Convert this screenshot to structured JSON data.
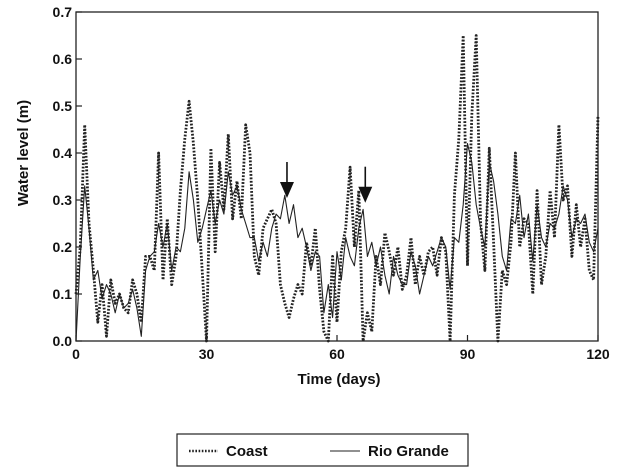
{
  "chart_data": {
    "type": "line",
    "title": "",
    "xlabel": "Time (days)",
    "ylabel": "Water level (m)",
    "xlim": [
      0,
      120
    ],
    "ylim": [
      0,
      0.7
    ],
    "x_ticks": [
      0,
      30,
      60,
      90,
      120
    ],
    "y_ticks": [
      0.0,
      0.1,
      0.2,
      0.3,
      0.4,
      0.5,
      0.6,
      0.7
    ],
    "y_tick_labels": [
      "0.0",
      "0.1",
      "0.2",
      "0.3",
      "0.4",
      "0.5",
      "0.6",
      "0.7"
    ],
    "grid": false,
    "legend_position": "bottom-center",
    "annotations": [
      {
        "type": "arrow",
        "x": 48.5,
        "y": 0.3,
        "direction": "down"
      },
      {
        "type": "arrow",
        "x": 66.5,
        "y": 0.29,
        "direction": "down"
      }
    ],
    "series": [
      {
        "name": "Coast",
        "style": "dotted",
        "color": "#222222",
        "x": [
          0,
          1,
          2,
          3,
          4,
          5,
          6,
          7,
          8,
          9,
          10,
          11,
          12,
          13,
          14,
          15,
          16,
          17,
          18,
          19,
          20,
          21,
          22,
          23,
          24,
          25,
          26,
          27,
          28,
          29,
          30,
          31,
          32,
          33,
          34,
          35,
          36,
          37,
          38,
          39,
          40,
          41,
          42,
          43,
          44,
          45,
          46,
          47,
          48,
          49,
          50,
          51,
          52,
          53,
          54,
          55,
          56,
          57,
          58,
          59,
          60,
          61,
          62,
          63,
          64,
          65,
          66,
          67,
          68,
          69,
          70,
          71,
          72,
          73,
          74,
          75,
          76,
          77,
          78,
          79,
          80,
          81,
          82,
          83,
          84,
          85,
          86,
          87,
          88,
          89,
          90,
          91,
          92,
          93,
          94,
          95,
          96,
          97,
          98,
          99,
          100,
          101,
          102,
          103,
          104,
          105,
          106,
          107,
          108,
          109,
          110,
          111,
          112,
          113,
          114,
          115,
          116,
          117,
          118,
          119,
          120
        ],
        "values": [
          0.1,
          0.2,
          0.46,
          0.25,
          0.15,
          0.04,
          0.12,
          0.01,
          0.13,
          0.08,
          0.1,
          0.07,
          0.06,
          0.13,
          0.1,
          0.04,
          0.18,
          0.18,
          0.15,
          0.4,
          0.13,
          0.26,
          0.12,
          0.18,
          0.32,
          0.43,
          0.51,
          0.42,
          0.3,
          0.15,
          0.0,
          0.41,
          0.19,
          0.38,
          0.28,
          0.44,
          0.26,
          0.34,
          0.26,
          0.46,
          0.4,
          0.18,
          0.14,
          0.24,
          0.26,
          0.28,
          0.25,
          0.12,
          0.08,
          0.05,
          0.09,
          0.12,
          0.1,
          0.21,
          0.16,
          0.24,
          0.11,
          0.02,
          0.0,
          0.18,
          0.04,
          0.19,
          0.24,
          0.37,
          0.2,
          0.32,
          0.0,
          0.06,
          0.02,
          0.18,
          0.12,
          0.23,
          0.19,
          0.14,
          0.2,
          0.11,
          0.14,
          0.22,
          0.12,
          0.18,
          0.14,
          0.19,
          0.2,
          0.14,
          0.22,
          0.19,
          0.0,
          0.31,
          0.43,
          0.65,
          0.16,
          0.48,
          0.65,
          0.25,
          0.15,
          0.41,
          0.21,
          0.0,
          0.15,
          0.12,
          0.21,
          0.4,
          0.2,
          0.26,
          0.25,
          0.1,
          0.32,
          0.12,
          0.18,
          0.32,
          0.22,
          0.46,
          0.3,
          0.33,
          0.18,
          0.29,
          0.2,
          0.26,
          0.15,
          0.13,
          0.48
        ]
      },
      {
        "name": "Rio Grande",
        "style": "solid",
        "color": "#222222",
        "x": [
          0,
          1,
          2,
          3,
          4,
          5,
          6,
          7,
          8,
          9,
          10,
          11,
          12,
          13,
          14,
          15,
          16,
          17,
          18,
          19,
          20,
          21,
          22,
          23,
          24,
          25,
          26,
          27,
          28,
          29,
          30,
          31,
          32,
          33,
          34,
          35,
          36,
          37,
          38,
          39,
          40,
          41,
          42,
          43,
          44,
          45,
          46,
          47,
          48,
          49,
          50,
          51,
          52,
          53,
          54,
          55,
          56,
          57,
          58,
          59,
          60,
          61,
          62,
          63,
          64,
          65,
          66,
          67,
          68,
          69,
          70,
          71,
          72,
          73,
          74,
          75,
          76,
          77,
          78,
          79,
          80,
          81,
          82,
          83,
          84,
          85,
          86,
          87,
          88,
          89,
          90,
          91,
          92,
          93,
          94,
          95,
          96,
          97,
          98,
          99,
          100,
          101,
          102,
          103,
          104,
          105,
          106,
          107,
          108,
          109,
          110,
          111,
          112,
          113,
          114,
          115,
          116,
          117,
          118,
          119,
          120
        ],
        "values": [
          0.0,
          0.18,
          0.33,
          0.24,
          0.13,
          0.15,
          0.09,
          0.12,
          0.1,
          0.06,
          0.1,
          0.07,
          0.08,
          0.11,
          0.07,
          0.01,
          0.15,
          0.18,
          0.19,
          0.25,
          0.2,
          0.25,
          0.15,
          0.2,
          0.19,
          0.24,
          0.36,
          0.3,
          0.21,
          0.24,
          0.28,
          0.32,
          0.25,
          0.3,
          0.27,
          0.36,
          0.31,
          0.33,
          0.28,
          0.25,
          0.22,
          0.22,
          0.17,
          0.21,
          0.18,
          0.24,
          0.27,
          0.26,
          0.31,
          0.25,
          0.29,
          0.22,
          0.24,
          0.2,
          0.15,
          0.19,
          0.18,
          0.06,
          0.12,
          0.05,
          0.19,
          0.13,
          0.22,
          0.18,
          0.16,
          0.24,
          0.28,
          0.18,
          0.21,
          0.16,
          0.2,
          0.14,
          0.1,
          0.18,
          0.14,
          0.12,
          0.12,
          0.19,
          0.16,
          0.1,
          0.14,
          0.18,
          0.16,
          0.19,
          0.22,
          0.2,
          0.11,
          0.22,
          0.21,
          0.29,
          0.42,
          0.38,
          0.29,
          0.24,
          0.2,
          0.38,
          0.34,
          0.27,
          0.18,
          0.15,
          0.26,
          0.25,
          0.31,
          0.22,
          0.27,
          0.17,
          0.29,
          0.22,
          0.2,
          0.25,
          0.24,
          0.27,
          0.33,
          0.3,
          0.22,
          0.26,
          0.25,
          0.27,
          0.21,
          0.19,
          0.24
        ]
      }
    ]
  }
}
